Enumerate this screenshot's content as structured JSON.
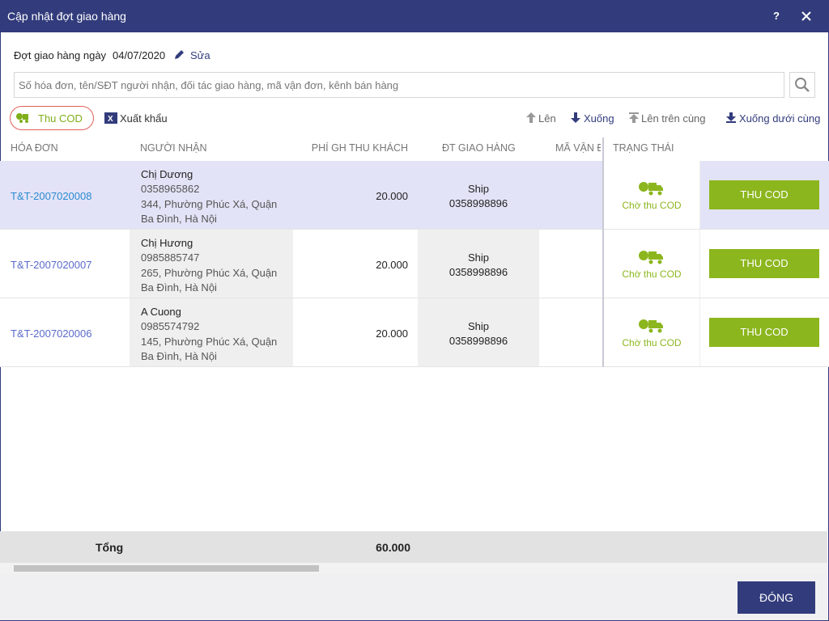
{
  "window": {
    "title": "Cập nhật đợt giao hàng",
    "help": "?"
  },
  "batch": {
    "label": "Đợt giao hàng ngày",
    "date": "04/07/2020",
    "edit": "Sửa"
  },
  "search": {
    "placeholder": "Số hóa đơn, tên/SĐT người nhận, đối tác giao hàng, mã vận đơn, kênh bán hàng"
  },
  "toolbar": {
    "collect_cod": "Thu COD",
    "export": "Xuất khẩu",
    "up": "Lên",
    "down": "Xuống",
    "top": "Lên trên cùng",
    "bottom": "Xuống dưới cùng"
  },
  "table": {
    "columns": [
      "HÓA ĐƠN",
      "NGƯỜI NHẬN",
      "PHÍ GH THU KHÁCH",
      "ĐT GIAO HÀNG",
      "MÃ VẬN Đ",
      "TRẠNG THÁI"
    ],
    "rows": [
      {
        "invoice": "T&T-2007020008",
        "name": "Chị Dương",
        "phone": "0358965862",
        "address": "344, Phường Phúc Xá, Quận Ba Đình, Hà Nội",
        "fee": "20.000",
        "partner": "Ship",
        "partner_phone": "0358998896",
        "status": "Chờ thu COD",
        "action": "THU COD"
      },
      {
        "invoice": "T&T-2007020007",
        "name": "Chị Hương",
        "phone": "0985885747",
        "address": "265, Phường Phúc Xá, Quận Ba Đình, Hà Nội",
        "fee": "20.000",
        "partner": "Ship",
        "partner_phone": "0358998896",
        "status": "Chờ thu COD",
        "action": "THU COD"
      },
      {
        "invoice": "T&T-2007020006",
        "name": "A Cuong",
        "phone": "0985574792",
        "address": "145, Phường Phúc Xá, Quận Ba Đình, Hà Nội",
        "fee": "20.000",
        "partner": "Ship",
        "partner_phone": "0358998896",
        "status": "Chờ thu COD",
        "action": "THU COD"
      }
    ]
  },
  "footer": {
    "total_label": "Tổng",
    "total": "60.000"
  },
  "close_button": "ĐÓNG"
}
